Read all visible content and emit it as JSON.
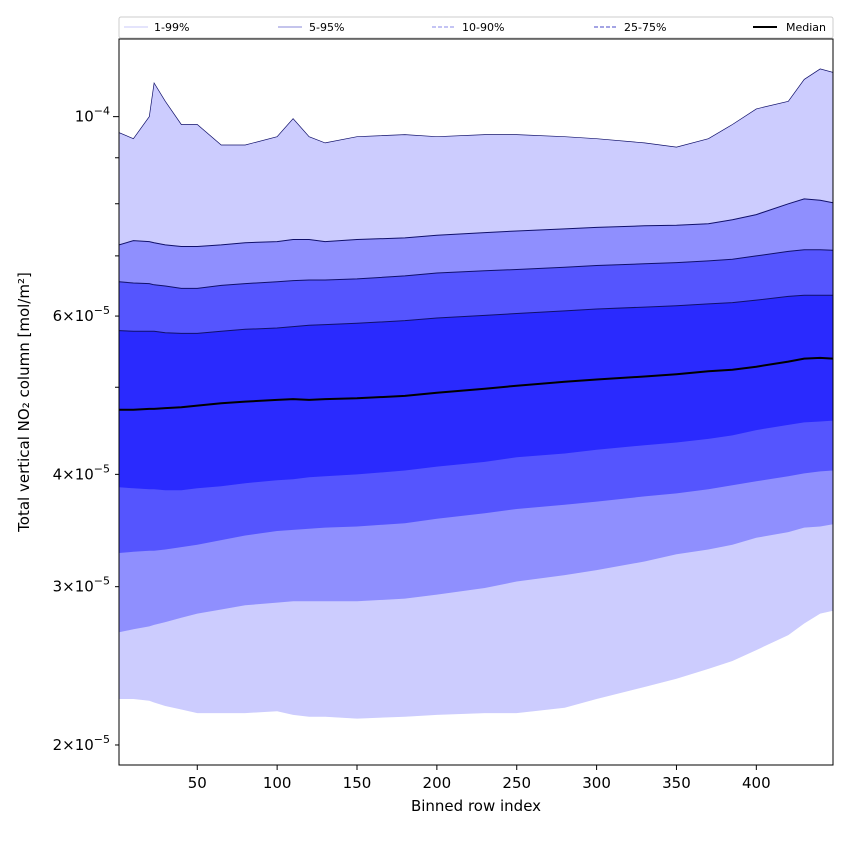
{
  "chart_data": {
    "type": "area",
    "xlabel": "Binned row index",
    "ylabel": "Total vertical NO₂ column [mol/m²]",
    "x_scale": "linear",
    "y_scale": "log",
    "xlim": [
      1,
      448
    ],
    "ylim": [
      1.9e-05,
      0.000122
    ],
    "x_ticks": [
      {
        "value": 50,
        "label": "50"
      },
      {
        "value": 100,
        "label": "100"
      },
      {
        "value": 150,
        "label": "150"
      },
      {
        "value": 200,
        "label": "200"
      },
      {
        "value": 250,
        "label": "250"
      },
      {
        "value": 300,
        "label": "300"
      },
      {
        "value": 350,
        "label": "350"
      },
      {
        "value": 400,
        "label": "400"
      }
    ],
    "y_major_ticks": [
      {
        "value": 0.0001,
        "base": "10",
        "exp": "−4",
        "mantissa": ""
      }
    ],
    "y_minor_labeled_ticks": [
      {
        "value": 2e-05,
        "mantissa": "2",
        "base": "10",
        "exp": "−5"
      },
      {
        "value": 3e-05,
        "mantissa": "3",
        "base": "10",
        "exp": "−5"
      },
      {
        "value": 4e-05,
        "mantissa": "4",
        "base": "10",
        "exp": "−5"
      },
      {
        "value": 6e-05,
        "mantissa": "6",
        "base": "10",
        "exp": "−5"
      }
    ],
    "y_minor_unlabeled_ticks": [
      5e-05,
      7e-05,
      8e-05,
      9e-05
    ],
    "legend": {
      "placement": "top",
      "entries": [
        {
          "label": "1-99%",
          "color": "#c8c8f8",
          "style": "solid"
        },
        {
          "label": "5-95%",
          "color": "#8a8ad8",
          "style": "solid"
        },
        {
          "label": "10-90%",
          "color": "#8a8ae8",
          "style": "dashed"
        },
        {
          "label": "25-75%",
          "color": "#4848c8",
          "style": "dashed"
        },
        {
          "label": "Median",
          "color": "#000000",
          "style": "solid"
        }
      ]
    },
    "x": [
      1,
      10,
      20,
      23,
      30,
      40,
      50,
      65,
      80,
      100,
      110,
      120,
      130,
      150,
      180,
      200,
      230,
      250,
      280,
      300,
      330,
      350,
      370,
      385,
      400,
      420,
      430,
      440,
      448
    ],
    "series": [
      {
        "name": "1-99%",
        "color": "#ccccfe",
        "lower": [
          2.25e-05,
          2.25e-05,
          2.24e-05,
          2.23e-05,
          2.21e-05,
          2.19e-05,
          2.17e-05,
          2.17e-05,
          2.17e-05,
          2.18e-05,
          2.16e-05,
          2.15e-05,
          2.15e-05,
          2.14e-05,
          2.15e-05,
          2.16e-05,
          2.17e-05,
          2.17e-05,
          2.2e-05,
          2.25e-05,
          2.32e-05,
          2.37e-05,
          2.43e-05,
          2.48e-05,
          2.55e-05,
          2.65e-05,
          2.73e-05,
          2.8e-05,
          2.82e-05
        ],
        "upper": [
          9.6e-05,
          9.45e-05,
          0.0001,
          0.000109,
          0.000104,
          9.8e-05,
          9.8e-05,
          9.3e-05,
          9.3e-05,
          9.5e-05,
          9.95e-05,
          9.5e-05,
          9.35e-05,
          9.5e-05,
          9.55e-05,
          9.5e-05,
          9.55e-05,
          9.55e-05,
          9.5e-05,
          9.45e-05,
          9.35e-05,
          9.25e-05,
          9.45e-05,
          9.8e-05,
          0.000102,
          0.000104,
          0.00011,
          0.000113,
          0.000112
        ]
      },
      {
        "name": "5-95%",
        "color": "#8f8ffe",
        "lower": [
          2.67e-05,
          2.69e-05,
          2.71e-05,
          2.72e-05,
          2.74e-05,
          2.77e-05,
          2.8e-05,
          2.83e-05,
          2.86e-05,
          2.88e-05,
          2.89e-05,
          2.89e-05,
          2.89e-05,
          2.89e-05,
          2.91e-05,
          2.94e-05,
          2.99e-05,
          3.04e-05,
          3.09e-05,
          3.13e-05,
          3.2e-05,
          3.26e-05,
          3.3e-05,
          3.34e-05,
          3.4e-05,
          3.45e-05,
          3.49e-05,
          3.5e-05,
          3.52e-05
        ],
        "upper": [
          7.2e-05,
          7.28e-05,
          7.26e-05,
          7.24e-05,
          7.2e-05,
          7.17e-05,
          7.17e-05,
          7.2e-05,
          7.24e-05,
          7.26e-05,
          7.3e-05,
          7.3e-05,
          7.26e-05,
          7.3e-05,
          7.33e-05,
          7.38e-05,
          7.43e-05,
          7.46e-05,
          7.5e-05,
          7.53e-05,
          7.56e-05,
          7.57e-05,
          7.6e-05,
          7.68e-05,
          7.78e-05,
          8e-05,
          8.1e-05,
          8.07e-05,
          8.02e-05
        ]
      },
      {
        "name": "10-90%",
        "color": "#5555fe",
        "lower": [
          3.27e-05,
          3.28e-05,
          3.29e-05,
          3.29e-05,
          3.3e-05,
          3.32e-05,
          3.34e-05,
          3.38e-05,
          3.42e-05,
          3.46e-05,
          3.47e-05,
          3.48e-05,
          3.49e-05,
          3.5e-05,
          3.53e-05,
          3.57e-05,
          3.62e-05,
          3.66e-05,
          3.7e-05,
          3.73e-05,
          3.78e-05,
          3.81e-05,
          3.85e-05,
          3.89e-05,
          3.93e-05,
          3.98e-05,
          4.01e-05,
          4.03e-05,
          4.04e-05
        ],
        "upper": [
          6.55e-05,
          6.53e-05,
          6.52e-05,
          6.5e-05,
          6.48e-05,
          6.44e-05,
          6.44e-05,
          6.49e-05,
          6.52e-05,
          6.55e-05,
          6.57e-05,
          6.58e-05,
          6.58e-05,
          6.6e-05,
          6.65e-05,
          6.7e-05,
          6.74e-05,
          6.76e-05,
          6.8e-05,
          6.83e-05,
          6.86e-05,
          6.88e-05,
          6.91e-05,
          6.94e-05,
          7e-05,
          7.08e-05,
          7.11e-05,
          7.11e-05,
          7.1e-05
        ]
      },
      {
        "name": "25-75%",
        "color": "#2a2afe",
        "lower": [
          3.87e-05,
          3.86e-05,
          3.85e-05,
          3.85e-05,
          3.84e-05,
          3.84e-05,
          3.86e-05,
          3.88e-05,
          3.91e-05,
          3.94e-05,
          3.95e-05,
          3.97e-05,
          3.98e-05,
          4e-05,
          4.04e-05,
          4.08e-05,
          4.13e-05,
          4.18e-05,
          4.22e-05,
          4.26e-05,
          4.31e-05,
          4.34e-05,
          4.38e-05,
          4.42e-05,
          4.48e-05,
          4.54e-05,
          4.57e-05,
          4.58e-05,
          4.59e-05
        ],
        "upper": [
          5.78e-05,
          5.77e-05,
          5.77e-05,
          5.77e-05,
          5.75e-05,
          5.74e-05,
          5.74e-05,
          5.77e-05,
          5.8e-05,
          5.82e-05,
          5.84e-05,
          5.86e-05,
          5.87e-05,
          5.89e-05,
          5.93e-05,
          5.97e-05,
          6.01e-05,
          6.04e-05,
          6.08e-05,
          6.11e-05,
          6.14e-05,
          6.16e-05,
          6.19e-05,
          6.21e-05,
          6.25e-05,
          6.31e-05,
          6.33e-05,
          6.33e-05,
          6.33e-05
        ]
      },
      {
        "name": "Median",
        "color": "#000000",
        "values": [
          4.72e-05,
          4.72e-05,
          4.73e-05,
          4.73e-05,
          4.74e-05,
          4.75e-05,
          4.77e-05,
          4.8e-05,
          4.82e-05,
          4.84e-05,
          4.85e-05,
          4.84e-05,
          4.85e-05,
          4.86e-05,
          4.89e-05,
          4.93e-05,
          4.98e-05,
          5.02e-05,
          5.07e-05,
          5.1e-05,
          5.14e-05,
          5.17e-05,
          5.21e-05,
          5.23e-05,
          5.27e-05,
          5.34e-05,
          5.38e-05,
          5.39e-05,
          5.38e-05
        ]
      }
    ]
  }
}
